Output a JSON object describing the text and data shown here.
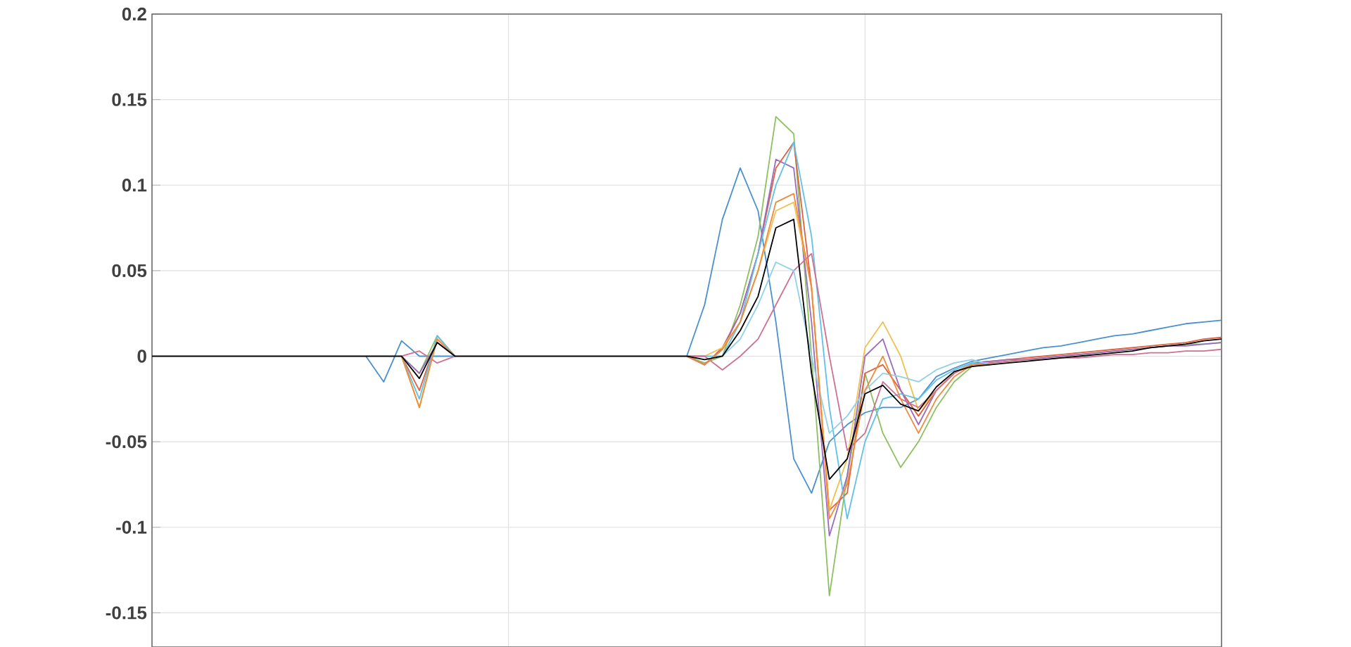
{
  "chart_data": {
    "type": "line",
    "ylim": [
      -0.17,
      0.2
    ],
    "categories": [
      null,
      null,
      null,
      null,
      null,
      null,
      null,
      null,
      null,
      null,
      null,
      null,
      null,
      null,
      null,
      null,
      null,
      null,
      null,
      null,
      null,
      null,
      null,
      null,
      null,
      null,
      null,
      null,
      null,
      null,
      null,
      null,
      null,
      null,
      null,
      null,
      null,
      null,
      null,
      null,
      null,
      null,
      null,
      null,
      null,
      null,
      null,
      null,
      null,
      null,
      null,
      null,
      null,
      null,
      null,
      null,
      null,
      null,
      null,
      null,
      null
    ],
    "yticks": [
      -0.15,
      -0.1,
      -0.05,
      0,
      0.05,
      0.1,
      0.15,
      0.2
    ],
    "grid": true,
    "series": [
      {
        "color": "#4a90d0",
        "values": [
          null,
          null,
          null,
          null,
          null,
          null,
          null,
          null,
          null,
          null,
          null,
          null,
          0,
          -0.015,
          0.009,
          0,
          0,
          0,
          null,
          null,
          null,
          null,
          null,
          null,
          null,
          null,
          null,
          null,
          null,
          null,
          0,
          0.03,
          0.08,
          0.11,
          0.085,
          0.02,
          -0.06,
          -0.08,
          -0.05,
          -0.04,
          -0.033,
          -0.03,
          -0.03,
          -0.025,
          -0.012,
          -0.007,
          -0.003,
          -0.001,
          0.001,
          0.003,
          0.005,
          0.006,
          0.008,
          0.01,
          0.012,
          0.013,
          0.015,
          0.017,
          0.019,
          0.02,
          0.021
        ]
      },
      {
        "color": "#8cc060",
        "values": [
          null,
          null,
          null,
          null,
          null,
          null,
          null,
          null,
          null,
          null,
          null,
          null,
          null,
          null,
          0,
          -0.01,
          0.012,
          0,
          null,
          null,
          null,
          null,
          null,
          null,
          null,
          null,
          null,
          null,
          null,
          null,
          0,
          -0.004,
          0,
          0.03,
          0.07,
          0.14,
          0.13,
          0,
          -0.14,
          -0.07,
          -0.01,
          -0.045,
          -0.065,
          -0.05,
          -0.03,
          -0.015,
          -0.006,
          -0.004,
          -0.003,
          -0.002,
          -0.001,
          0,
          0.001,
          0.002,
          0.003,
          0.004,
          0.005,
          0.006,
          0.007,
          0.007,
          0.008
        ]
      },
      {
        "color": "#e0603a",
        "values": [
          null,
          null,
          null,
          null,
          null,
          null,
          null,
          null,
          null,
          null,
          null,
          null,
          null,
          null,
          0,
          -0.02,
          0.01,
          0,
          null,
          null,
          null,
          null,
          null,
          null,
          null,
          null,
          null,
          null,
          null,
          null,
          0,
          -0.005,
          0.005,
          0.025,
          0.06,
          0.11,
          0.125,
          0.04,
          -0.09,
          -0.08,
          -0.01,
          -0.005,
          -0.02,
          -0.035,
          -0.02,
          -0.01,
          -0.004,
          -0.003,
          -0.002,
          -0.001,
          0,
          0.001,
          0.002,
          0.003,
          0.004,
          0.005,
          0.006,
          0.007,
          0.008,
          0.01,
          0.011
        ]
      },
      {
        "color": "#9b6bbf",
        "values": [
          null,
          null,
          null,
          null,
          null,
          null,
          null,
          null,
          null,
          null,
          null,
          null,
          null,
          null,
          0,
          -0.01,
          0.008,
          0,
          null,
          null,
          null,
          null,
          null,
          null,
          null,
          null,
          null,
          null,
          null,
          null,
          0,
          -0.005,
          0.004,
          0.025,
          0.06,
          0.115,
          0.11,
          0.02,
          -0.105,
          -0.07,
          0,
          0.01,
          -0.02,
          -0.04,
          -0.02,
          -0.01,
          -0.004,
          -0.003,
          -0.002,
          -0.002,
          -0.001,
          0,
          0.001,
          0.002,
          0.003,
          0.004,
          0.005,
          0.006,
          0.006,
          0.007,
          0.008
        ]
      },
      {
        "color": "#f0c050",
        "values": [
          null,
          null,
          null,
          null,
          null,
          null,
          null,
          null,
          null,
          null,
          null,
          null,
          null,
          null,
          0,
          -0.03,
          0.012,
          0,
          null,
          null,
          null,
          null,
          null,
          null,
          null,
          null,
          null,
          null,
          null,
          null,
          0,
          0,
          0.005,
          0.02,
          0.05,
          0.085,
          0.09,
          0.04,
          -0.09,
          -0.06,
          0.005,
          0.02,
          0,
          -0.032,
          -0.02,
          -0.01,
          -0.004,
          -0.005,
          null,
          null,
          null,
          null,
          null,
          null,
          null,
          null,
          null,
          null,
          null,
          null,
          null
        ]
      },
      {
        "color": "#60c0e8",
        "values": [
          null,
          null,
          null,
          null,
          null,
          null,
          null,
          null,
          null,
          null,
          null,
          null,
          null,
          null,
          0,
          -0.025,
          0.012,
          0,
          null,
          null,
          null,
          null,
          null,
          null,
          null,
          null,
          null,
          null,
          null,
          null,
          0,
          0,
          0,
          0.02,
          0.06,
          0.1,
          0.125,
          0.07,
          -0.03,
          -0.095,
          -0.05,
          -0.025,
          -0.022,
          -0.025,
          -0.014,
          -0.008,
          -0.004,
          -0.005,
          null,
          null,
          null,
          null,
          null,
          null,
          null,
          null,
          null,
          null,
          null,
          null,
          null
        ]
      },
      {
        "color": "#d07090",
        "values": [
          null,
          null,
          null,
          null,
          null,
          null,
          null,
          null,
          null,
          null,
          null,
          null,
          null,
          null,
          0,
          0.003,
          -0.004,
          0,
          null,
          null,
          null,
          null,
          null,
          null,
          null,
          null,
          null,
          null,
          null,
          null,
          0,
          0,
          -0.008,
          0,
          0.01,
          0.03,
          0.05,
          0.06,
          0,
          -0.055,
          -0.045,
          -0.015,
          -0.025,
          -0.03,
          -0.02,
          -0.01,
          -0.005,
          -0.004,
          -0.003,
          -0.002,
          -0.002,
          -0.001,
          -0.001,
          0,
          0.001,
          0.001,
          0.002,
          0.002,
          0.003,
          0.003,
          0.004
        ]
      },
      {
        "color": "#90d0e8",
        "values": [
          null,
          null,
          null,
          null,
          null,
          null,
          null,
          null,
          null,
          null,
          null,
          null,
          null,
          null,
          null,
          null,
          null,
          null,
          null,
          null,
          null,
          null,
          null,
          null,
          null,
          null,
          null,
          null,
          null,
          null,
          null,
          null,
          0,
          0.01,
          0.03,
          0.055,
          0.05,
          0,
          -0.045,
          -0.035,
          -0.02,
          -0.01,
          -0.012,
          -0.015,
          -0.008,
          -0.004,
          -0.002,
          -0.005,
          null,
          null,
          null,
          null,
          null,
          null,
          null,
          null,
          null,
          null,
          null,
          null,
          null
        ]
      },
      {
        "color": "#f08a3c",
        "values": [
          null,
          null,
          null,
          null,
          null,
          null,
          null,
          null,
          null,
          null,
          null,
          null,
          null,
          null,
          0,
          -0.03,
          0.01,
          0,
          null,
          null,
          null,
          null,
          null,
          null,
          null,
          null,
          null,
          null,
          null,
          null,
          0,
          -0.005,
          0.004,
          0.02,
          0.05,
          0.09,
          0.095,
          0.04,
          -0.095,
          -0.075,
          -0.02,
          0,
          -0.025,
          -0.045,
          -0.025,
          -0.012,
          -0.005,
          -0.005,
          null,
          null,
          null,
          null,
          null,
          null,
          null,
          null,
          null,
          null,
          null,
          null,
          null
        ]
      },
      {
        "color": "#000000",
        "values": [
          0,
          0,
          0,
          0,
          0,
          0,
          0,
          0,
          0,
          0,
          0,
          0,
          0,
          0,
          0,
          -0.013,
          0.008,
          0,
          0,
          0,
          0,
          0,
          0,
          0,
          0,
          0,
          0,
          0,
          0,
          0,
          0,
          -0.002,
          0,
          0.015,
          0.035,
          0.075,
          0.08,
          -0.01,
          -0.072,
          -0.06,
          -0.022,
          -0.017,
          -0.028,
          -0.032,
          -0.018,
          -0.009,
          -0.006,
          -0.005,
          -0.004,
          -0.003,
          -0.002,
          -0.001,
          0,
          0.001,
          0.002,
          0.003,
          0.005,
          0.006,
          0.007,
          0.009,
          0.01
        ]
      }
    ]
  }
}
